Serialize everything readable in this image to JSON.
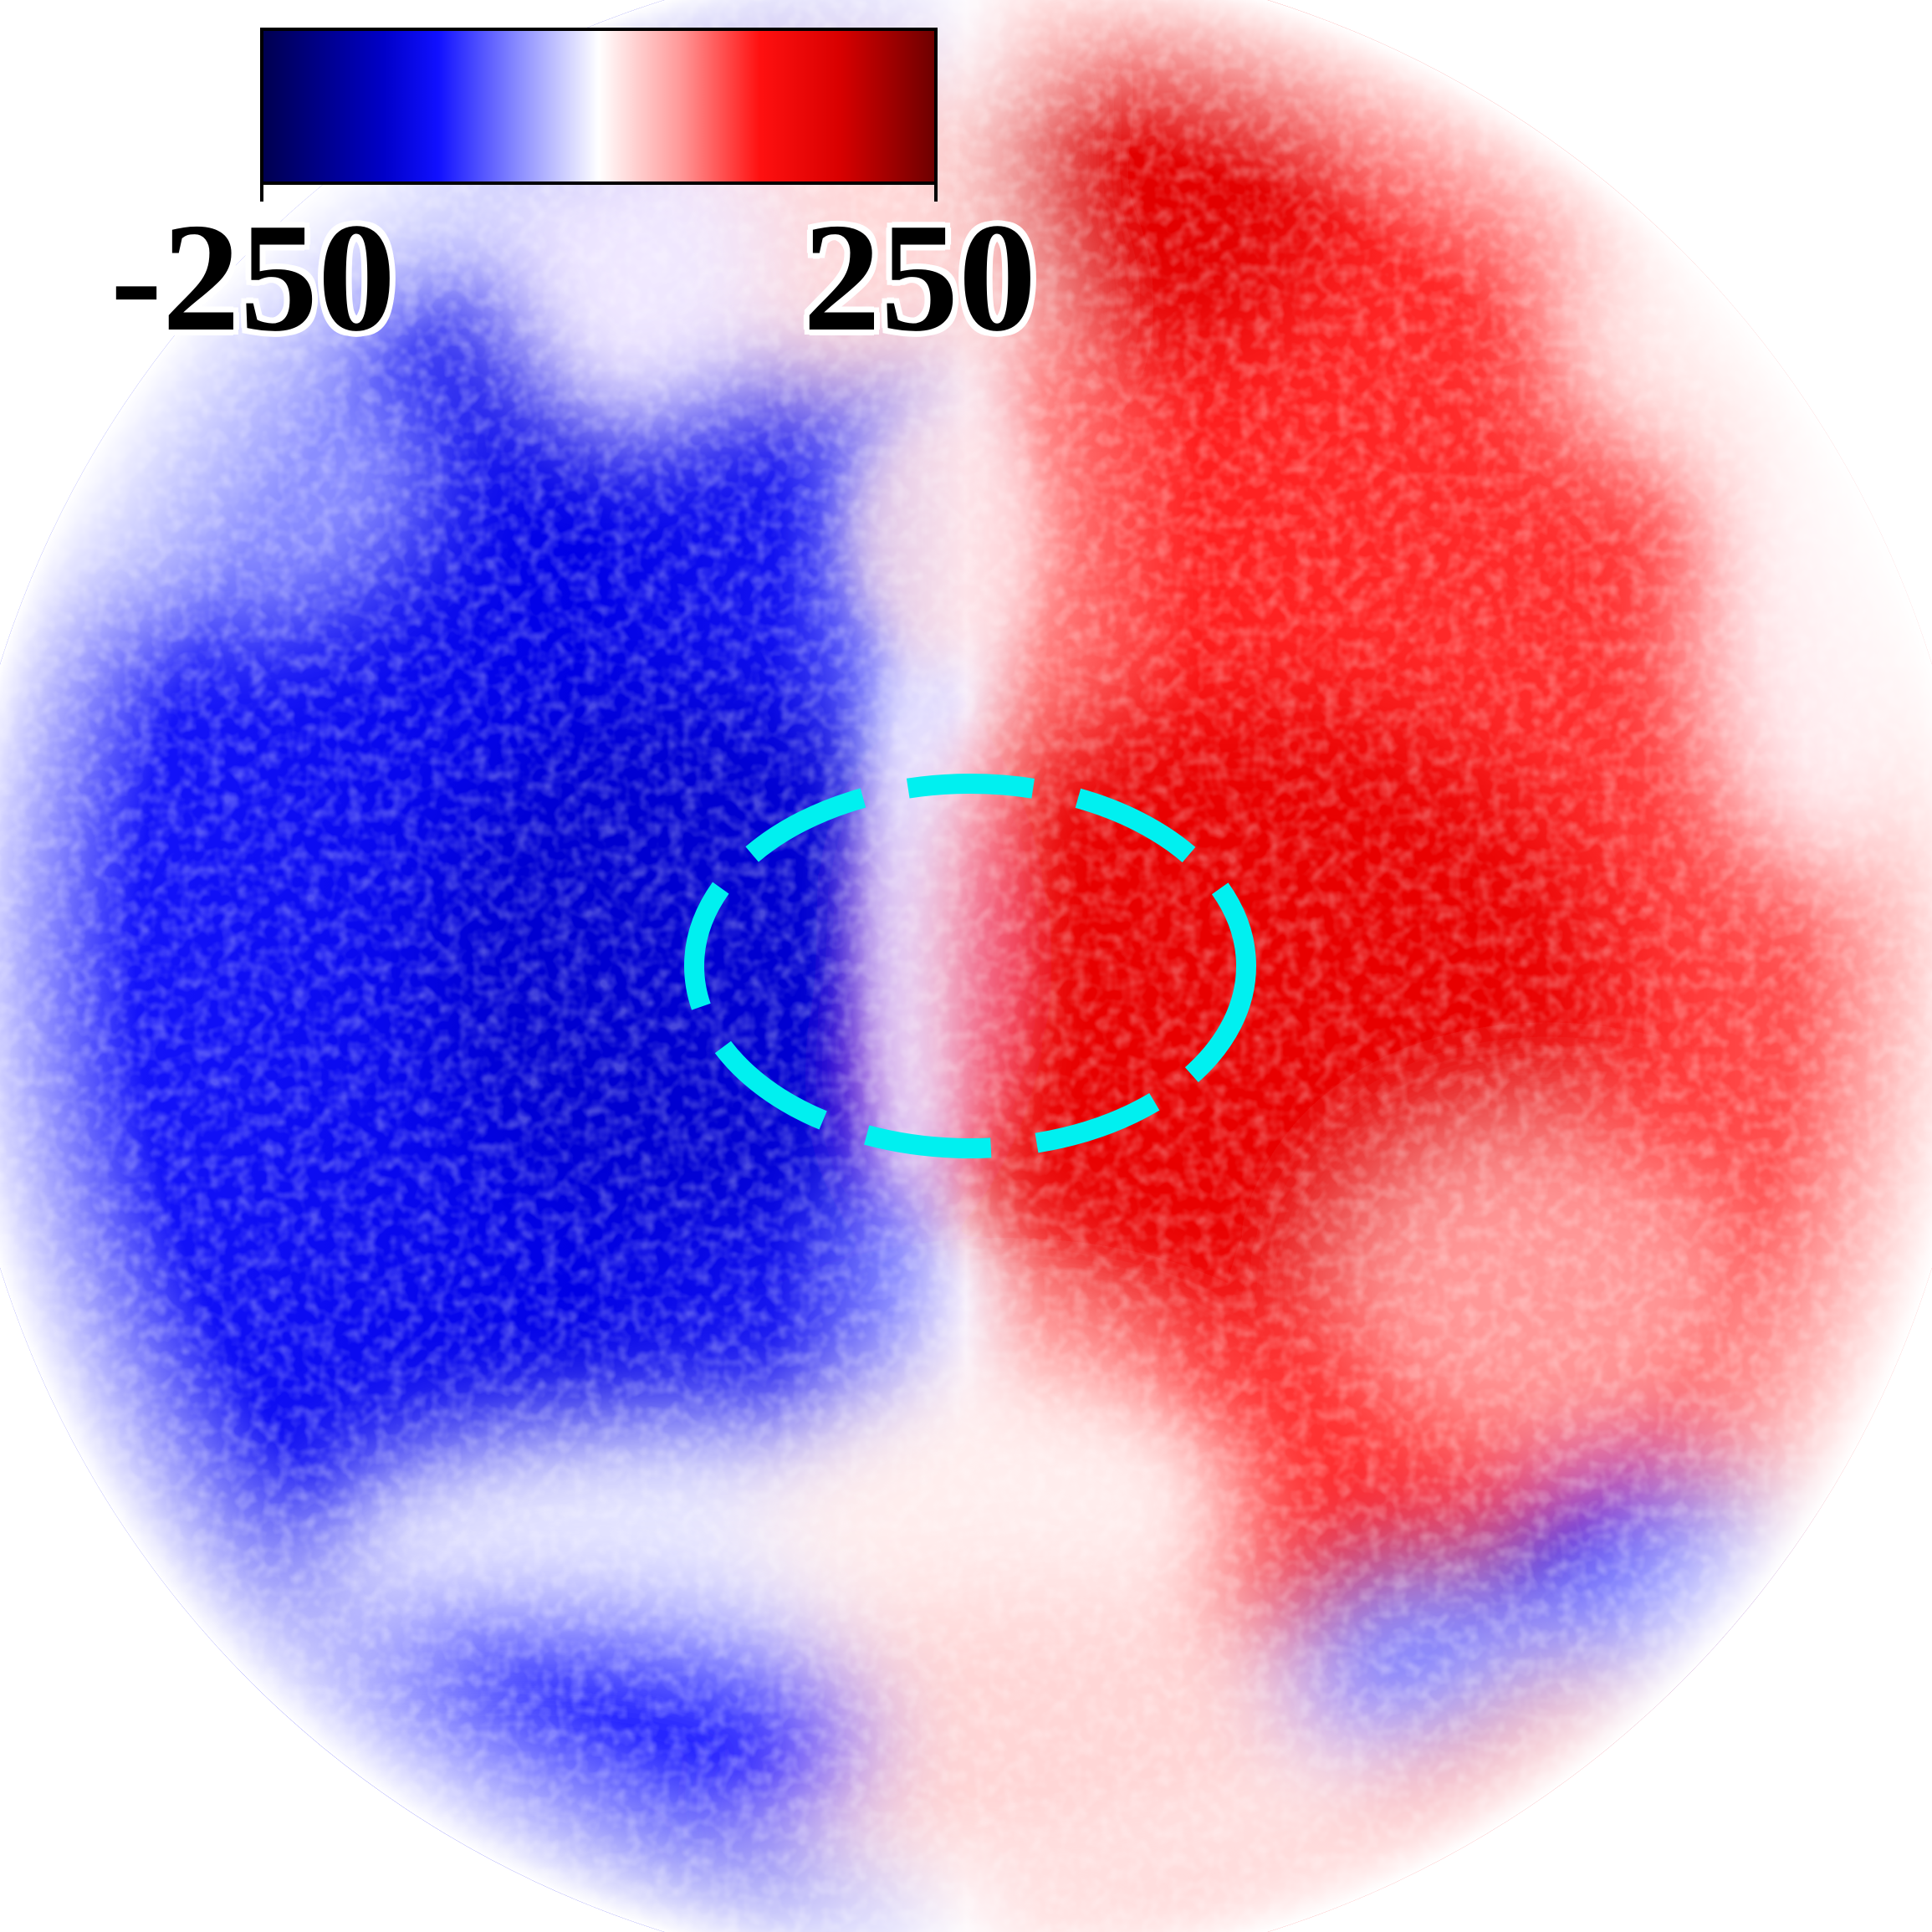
{
  "colorbar": {
    "min_label": "-250",
    "max_label": "250",
    "colors": [
      "#000050",
      "#0000c8",
      "#1010ff",
      "#8a8cff",
      "#ffffff",
      "#ff9a9a",
      "#ff1010",
      "#d80000",
      "#6e0000"
    ]
  },
  "map": {
    "negative_color": "#0000ff",
    "positive_color": "#ff0000",
    "annotation_color": "#00f0f0",
    "annotation_style": "dashed ellipse"
  }
}
